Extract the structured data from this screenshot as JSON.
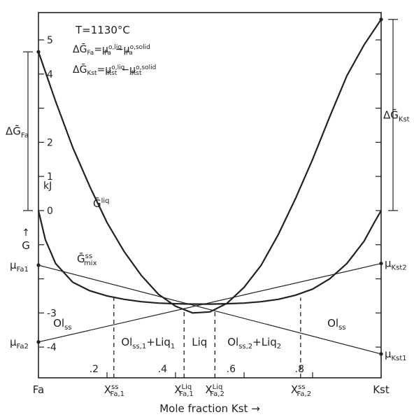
{
  "chart_data": {
    "type": "line",
    "x_axis": {
      "title": "Mole fraction Kst",
      "title_arrow": "→",
      "range": [
        0,
        1
      ],
      "ticks": [
        0.2,
        0.4,
        0.6,
        0.8
      ],
      "tick_labels": [
        ".2",
        ".4",
        ".6",
        ".8"
      ],
      "end_labels": {
        "left": "Fa",
        "right": "Kst"
      }
    },
    "y_axis": {
      "symbol": "G",
      "symbol_arrow": "↑",
      "unit": "kJ",
      "range": [
        -4.9,
        5.8
      ],
      "left_ticks": [
        5,
        4,
        2,
        1,
        0,
        -3,
        -4
      ],
      "left_tick_labels": [
        "5",
        "4",
        "2",
        "1",
        "0",
        "-3",
        "-4"
      ],
      "right_ticks": [
        5,
        4,
        3,
        2,
        1,
        0,
        -1,
        -2,
        -3,
        -4
      ],
      "extra_left_ticks": [
        3,
        -1,
        -2
      ]
    },
    "header_text": {
      "temperature": "T=1130°C",
      "eq_fa": {
        "lhs": "ΔḠ",
        "lhs_sub": "Fa",
        "eq": "=",
        "m1": "μ",
        "m1_sub": "Fa",
        "m1_sup": "o,liq",
        "minus": "−",
        "m2": "μ",
        "m2_sub": "Fa",
        "m2_sup": "o,solid"
      },
      "eq_kst": {
        "lhs": "ΔḠ",
        "lhs_sub": "Kst",
        "eq": "=",
        "m1": "μ",
        "m1_sub": "Kst",
        "m1_sup": "o,liq",
        "minus": "−",
        "m2": "μ",
        "m2_sub": "Kst",
        "m2_sup": "o,solid"
      }
    },
    "series": [
      {
        "name": "G liq",
        "label_main": "Ḡ",
        "label_sup": "liq",
        "x": [
          0,
          0.05,
          0.1,
          0.15,
          0.2,
          0.25,
          0.3,
          0.35,
          0.4,
          0.45,
          0.5,
          0.55,
          0.6,
          0.65,
          0.7,
          0.75,
          0.8,
          0.85,
          0.9,
          0.95,
          1
        ],
        "y": [
          4.65,
          3.2,
          1.85,
          0.7,
          -0.35,
          -1.2,
          -1.9,
          -2.45,
          -2.8,
          -3.0,
          -2.97,
          -2.72,
          -2.25,
          -1.6,
          -0.7,
          0.35,
          1.5,
          2.75,
          3.95,
          4.85,
          5.6
        ]
      },
      {
        "name": "G ss mix",
        "label_main": "Ḡ",
        "label_sup": "ss",
        "label_sub": "mix",
        "x": [
          0,
          0.02,
          0.05,
          0.1,
          0.15,
          0.2,
          0.25,
          0.3,
          0.35,
          0.4,
          0.45,
          0.5,
          0.55,
          0.6,
          0.65,
          0.7,
          0.75,
          0.8,
          0.85,
          0.9,
          0.95,
          0.98,
          1
        ],
        "y": [
          0,
          -0.85,
          -1.55,
          -2.1,
          -2.35,
          -2.5,
          -2.6,
          -2.67,
          -2.71,
          -2.73,
          -2.74,
          -2.74,
          -2.73,
          -2.71,
          -2.67,
          -2.6,
          -2.48,
          -2.3,
          -2.0,
          -1.55,
          -0.9,
          -0.35,
          0
        ]
      },
      {
        "name": "tangent 1",
        "x": [
          0,
          1
        ],
        "y": [
          -1.6,
          -4.2
        ]
      },
      {
        "name": "tangent 2",
        "x": [
          0,
          1
        ],
        "y": [
          -3.85,
          -1.55
        ]
      }
    ],
    "vertical_dashed_x": [
      0.22,
      0.425,
      0.515,
      0.765
    ],
    "composition_labels": [
      {
        "x": 0.22,
        "main": "X",
        "sup": "ss",
        "sub": "Fa,1"
      },
      {
        "x": 0.425,
        "main": "X",
        "sup": "Liq",
        "sub": "Fa,1"
      },
      {
        "x": 0.515,
        "main": "X",
        "sup": "Liq",
        "sub": "Fa,2"
      },
      {
        "x": 0.765,
        "main": "X",
        "sup": "ss",
        "sub": "Fa,2"
      }
    ],
    "region_labels": [
      {
        "x": 0.07,
        "y": -3.3,
        "main": "Ol",
        "sub": "ss"
      },
      {
        "x": 0.32,
        "y": -3.85,
        "main": "Ol",
        "sub": "ss,1",
        "tail": "+Liq",
        "tail_sub": "1"
      },
      {
        "x": 0.47,
        "y": -3.85,
        "main": "Liq"
      },
      {
        "x": 0.63,
        "y": -3.85,
        "main": "Ol",
        "sub": "ss,2",
        "tail": "+Liq",
        "tail_sub": "2"
      },
      {
        "x": 0.87,
        "y": -3.3,
        "main": "Ol",
        "sub": "ss"
      }
    ],
    "endpoint_labels": {
      "left_upper": {
        "y": -1.6,
        "main": "μ",
        "sub": "Fa1"
      },
      "left_lower": {
        "y": -3.85,
        "main": "μ",
        "sub": "Fa2"
      },
      "right_upper": {
        "y": -1.55,
        "main": "μ",
        "sub": "Kst2"
      },
      "right_lower": {
        "y": -4.2,
        "main": "μ",
        "sub": "Kst1"
      }
    },
    "brackets": {
      "fa": {
        "from": 0,
        "to": 4.65,
        "main": "ΔḠ",
        "sub": "Fa"
      },
      "kst": {
        "from": 0,
        "to": 5.6,
        "main": "ΔḠ",
        "sub": "Kst"
      }
    }
  }
}
